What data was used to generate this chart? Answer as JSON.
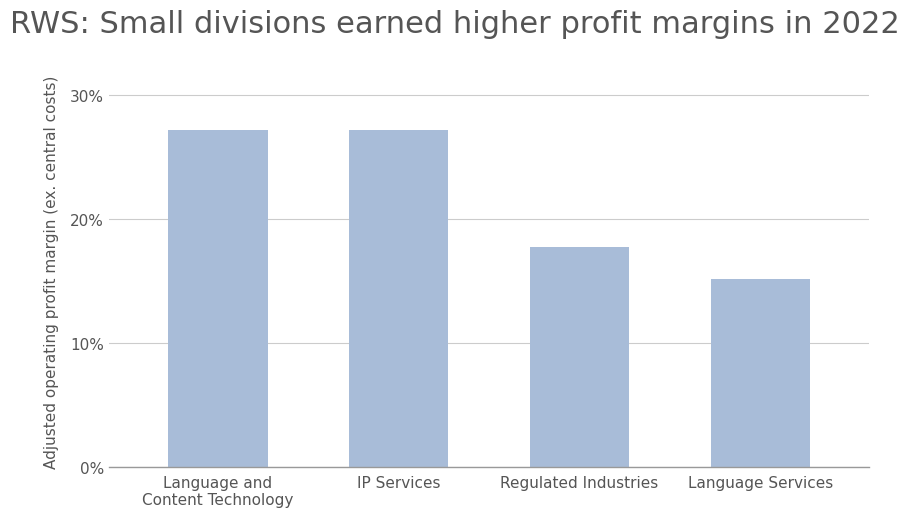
{
  "title": "RWS: Small divisions earned higher profit margins in 2022",
  "categories": [
    "Language and\nContent Technology",
    "IP Services",
    "Regulated Industries",
    "Language Services"
  ],
  "values": [
    0.272,
    0.272,
    0.178,
    0.152
  ],
  "bar_color": "#a8bcd8",
  "ylabel": "Adjusted operating profit margin (ex. central costs)",
  "ylim": [
    0,
    0.315
  ],
  "yticks": [
    0.0,
    0.1,
    0.2,
    0.3
  ],
  "background_color": "#ffffff",
  "title_fontsize": 22,
  "ylabel_fontsize": 11,
  "tick_fontsize": 11,
  "grid_color": "#cccccc",
  "title_color": "#555555",
  "tick_color": "#555555",
  "bar_width": 0.55,
  "bar_positions": [
    0,
    1,
    2,
    3
  ]
}
